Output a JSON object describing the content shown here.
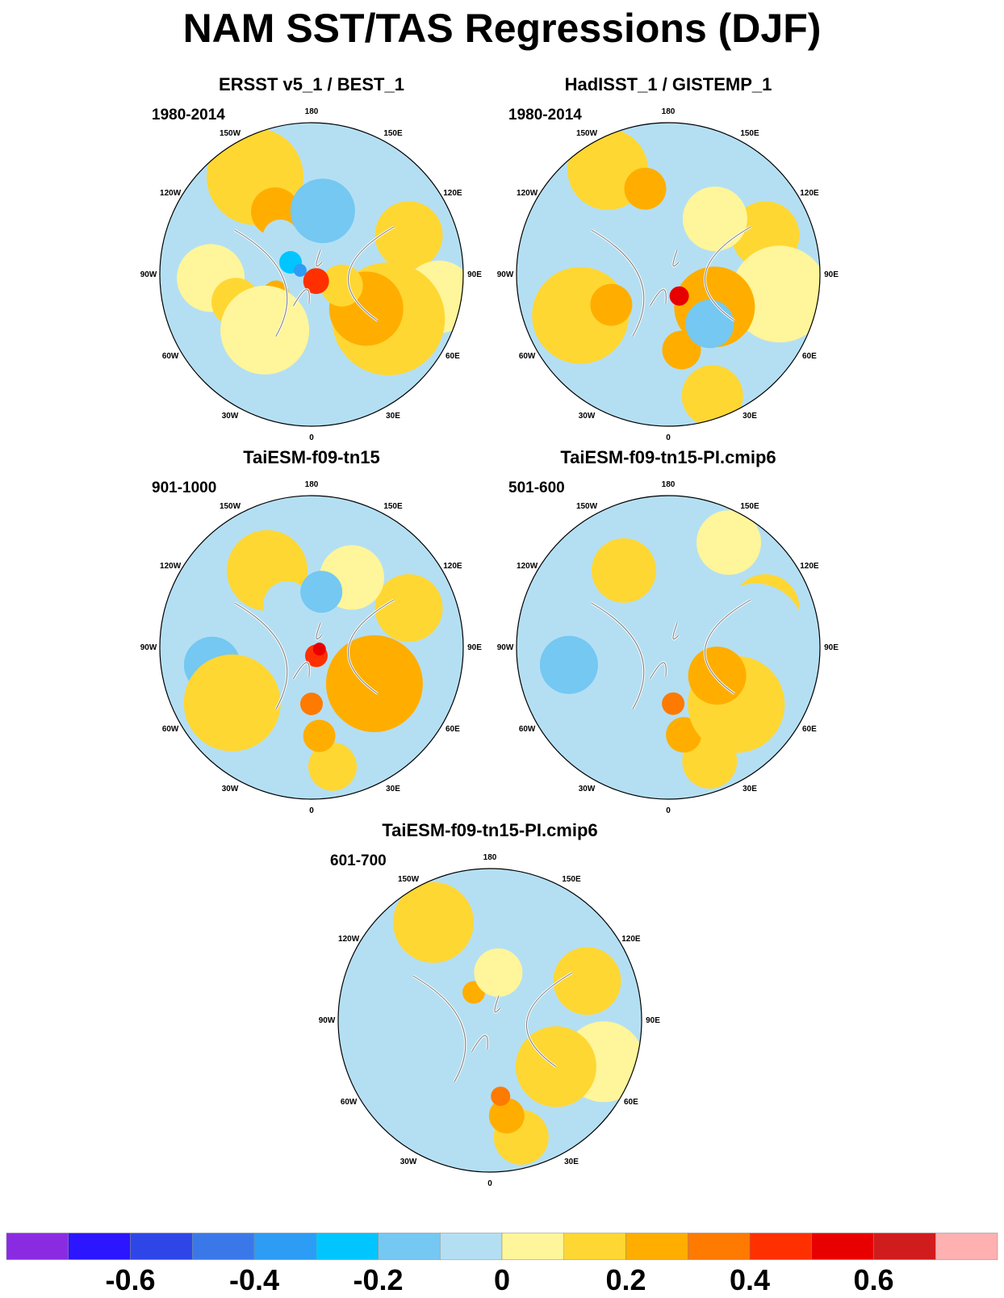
{
  "title": "NAM SST/TAS Regressions (DJF)",
  "panels": [
    {
      "id": "ersst-best",
      "title": "ERSST v5_1 / BEST_1",
      "period": "1980-2014"
    },
    {
      "id": "hadisst-gistemp",
      "title": "HadISST_1 / GISTEMP_1",
      "period": "1980-2014"
    },
    {
      "id": "taiesm-tn15",
      "title": "TaiESM-f09-tn15",
      "period": "901-1000"
    },
    {
      "id": "taiesm-pi-501",
      "title": "TaiESM-f09-tn15-PI.cmip6",
      "period": "501-600"
    },
    {
      "id": "taiesm-pi-601",
      "title": "TaiESM-f09-tn15-PI.cmip6",
      "period": "601-700"
    }
  ],
  "longitude_labels": [
    "180",
    "150E",
    "120E",
    "90E",
    "60E",
    "30E",
    "0",
    "30W",
    "60W",
    "90W",
    "120W",
    "150W"
  ],
  "colorbar": {
    "colors": [
      "#8a2be2",
      "#2b16ff",
      "#2e46e8",
      "#3a78ea",
      "#2c9cf5",
      "#00c5ff",
      "#74c8f2",
      "#b4dff3",
      "#fff59a",
      "#ffd733",
      "#ffae00",
      "#ff7a00",
      "#ff3000",
      "#e80000",
      "#d01c1c",
      "#ffb0b0"
    ],
    "tick_labels": [
      "-0.6",
      "-0.4",
      "-0.2",
      "0",
      "0.2",
      "0.4",
      "0.6"
    ],
    "tick_values": [
      -0.6,
      -0.4,
      -0.2,
      0,
      0.2,
      0.4,
      0.6
    ],
    "range": [
      -0.8,
      0.8
    ]
  }
}
